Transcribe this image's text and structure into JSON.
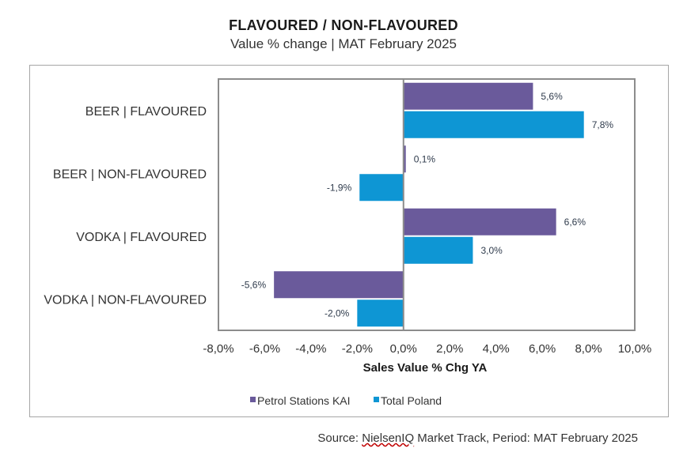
{
  "header": {
    "title": "FLAVOURED / NON-FLAVOURED",
    "subtitle": "Value % change | MAT February 2025"
  },
  "footer": {
    "source_prefix": "Source: ",
    "source_brand": "NielsenIQ",
    "source_suffix": " Market Track, Period: MAT February 2025"
  },
  "colors": {
    "petrol": "#6a5a9b",
    "total": "#0e96d4",
    "axis_frame": "#8c8c8c",
    "label": "#2f3b4c"
  },
  "chart_data": {
    "type": "bar",
    "orientation": "horizontal",
    "title": "FLAVOURED / NON-FLAVOURED",
    "subtitle": "Value % change | MAT February 2025",
    "xlabel": "Sales Value % Chg YA",
    "ylabel": "",
    "xlim": [
      -8,
      10
    ],
    "x_ticks": [
      -8,
      -6,
      -4,
      -2,
      0,
      2,
      4,
      6,
      8,
      10
    ],
    "x_tick_labels": [
      "-8,0%",
      "-6,0%",
      "-4,0%",
      "-2,0%",
      "0,0%",
      "2,0%",
      "4,0%",
      "6,0%",
      "8,0%",
      "10,0%"
    ],
    "categories": [
      "BEER | FLAVOURED",
      "BEER | NON-FLAVOURED",
      "VODKA | FLAVOURED",
      "VODKA | NON-FLAVOURED"
    ],
    "series": [
      {
        "name": "Petrol Stations KAI",
        "values": [
          5.6,
          0.1,
          6.6,
          -5.6
        ],
        "labels": [
          "5,6%",
          "0,1%",
          "6,6%",
          "-5,6%"
        ]
      },
      {
        "name": "Total Poland",
        "values": [
          7.8,
          -1.9,
          3.0,
          -2.0
        ],
        "labels": [
          "7,8%",
          "-1,9%",
          "3,0%",
          "-2,0%"
        ]
      }
    ],
    "legend_position": "bottom",
    "grid": false
  }
}
